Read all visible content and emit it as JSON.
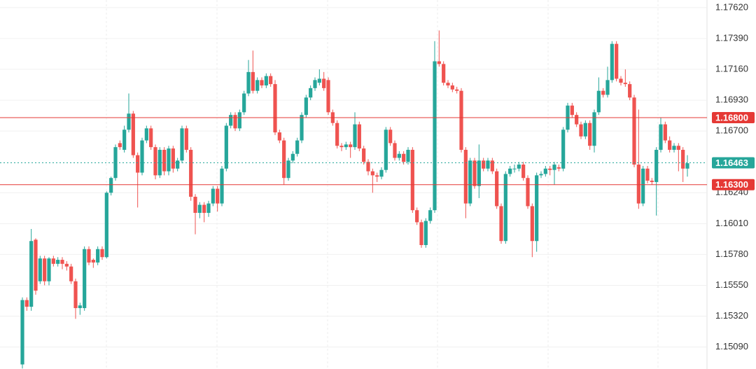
{
  "chart_data": {
    "type": "candlestick",
    "up_color": "#26a69a",
    "down_color": "#ef5350",
    "ylim": [
      1.14926,
      1.17677
    ],
    "yticks": [
      {
        "value": 1.1762,
        "label": "1.17620"
      },
      {
        "value": 1.1739,
        "label": "1.17390"
      },
      {
        "value": 1.1716,
        "label": "1.17160"
      },
      {
        "value": 1.1693,
        "label": "1.16930"
      },
      {
        "value": 1.167,
        "label": "1.16700"
      },
      {
        "value": 1.1624,
        "label": "1.16240"
      },
      {
        "value": 1.1601,
        "label": "1.16010"
      },
      {
        "value": 1.1578,
        "label": "1.15780"
      },
      {
        "value": 1.1555,
        "label": "1.15550"
      },
      {
        "value": 1.1532,
        "label": "1.15320"
      },
      {
        "value": 1.1509,
        "label": "1.15090"
      }
    ],
    "grid": true,
    "levels": [
      {
        "value": 1.168,
        "label": "1.16800",
        "color": "#e53935"
      },
      {
        "value": 1.163,
        "label": "1.16300",
        "color": "#e53935"
      }
    ],
    "last_price": {
      "value": 1.16463,
      "label": "1.16463",
      "color": "#26a69a"
    },
    "ohlc": [
      [
        1.1496,
        1.1546,
        1.1493,
        1.1544
      ],
      [
        1.1544,
        1.1546,
        1.1536,
        1.1539
      ],
      [
        1.1539,
        1.1597,
        1.1536,
        1.1588
      ],
      [
        1.1589,
        1.159,
        1.1548,
        1.1551
      ],
      [
        1.1558,
        1.1577,
        1.1556,
        1.1575
      ],
      [
        1.1575,
        1.1577,
        1.1555,
        1.1558
      ],
      [
        1.1558,
        1.1576,
        1.1555,
        1.1575
      ],
      [
        1.1575,
        1.1577,
        1.1569,
        1.1571
      ],
      [
        1.1571,
        1.1576,
        1.1569,
        1.1574
      ],
      [
        1.1574,
        1.1576,
        1.1567,
        1.1571
      ],
      [
        1.1571,
        1.1573,
        1.1566,
        1.1569
      ],
      [
        1.1569,
        1.1571,
        1.1556,
        1.1558
      ],
      [
        1.1558,
        1.156,
        1.153,
        1.1538
      ],
      [
        1.1538,
        1.1542,
        1.1533,
        1.154
      ],
      [
        1.1538,
        1.1584,
        1.1536,
        1.1582
      ],
      [
        1.1582,
        1.1584,
        1.157,
        1.1572
      ],
      [
        1.1574,
        1.1575,
        1.1568,
        1.1572
      ],
      [
        1.1572,
        1.1584,
        1.157,
        1.1582
      ],
      [
        1.1582,
        1.1584,
        1.1574,
        1.1576
      ],
      [
        1.1576,
        1.1625,
        1.1575,
        1.1624
      ],
      [
        1.1624,
        1.1636,
        1.1622,
        1.1635
      ],
      [
        1.1635,
        1.166,
        1.1633,
        1.1658
      ],
      [
        1.1661,
        1.1663,
        1.1656,
        1.1658
      ],
      [
        1.1656,
        1.1674,
        1.1654,
        1.1671
      ],
      [
        1.1671,
        1.1698,
        1.1669,
        1.1683
      ],
      [
        1.1683,
        1.1685,
        1.165,
        1.1652
      ],
      [
        1.1652,
        1.1654,
        1.1613,
        1.1639
      ],
      [
        1.1639,
        1.1665,
        1.1637,
        1.1663
      ],
      [
        1.1663,
        1.1674,
        1.1661,
        1.1672
      ],
      [
        1.1672,
        1.1674,
        1.1656,
        1.1658
      ],
      [
        1.1658,
        1.166,
        1.1634,
        1.1637
      ],
      [
        1.1637,
        1.1658,
        1.1635,
        1.1656
      ],
      [
        1.1656,
        1.1658,
        1.1637,
        1.164
      ],
      [
        1.164,
        1.1659,
        1.1637,
        1.1657
      ],
      [
        1.1657,
        1.1659,
        1.1639,
        1.1642
      ],
      [
        1.1642,
        1.165,
        1.164,
        1.1648
      ],
      [
        1.1648,
        1.1674,
        1.1646,
        1.1672
      ],
      [
        1.1672,
        1.1674,
        1.1654,
        1.1656
      ],
      [
        1.1656,
        1.1658,
        1.1618,
        1.1621
      ],
      [
        1.1621,
        1.1623,
        1.1593,
        1.1609
      ],
      [
        1.1609,
        1.1617,
        1.1605,
        1.1615
      ],
      [
        1.1615,
        1.1617,
        1.1602,
        1.1609
      ],
      [
        1.1609,
        1.1618,
        1.1606,
        1.1616
      ],
      [
        1.1616,
        1.1629,
        1.1614,
        1.1627
      ],
      [
        1.1627,
        1.1629,
        1.161,
        1.1616
      ],
      [
        1.1616,
        1.1644,
        1.1614,
        1.1642
      ],
      [
        1.1642,
        1.1676,
        1.164,
        1.1674
      ],
      [
        1.1674,
        1.1684,
        1.1672,
        1.1682
      ],
      [
        1.1682,
        1.1684,
        1.167,
        1.1672
      ],
      [
        1.1672,
        1.1686,
        1.167,
        1.1684
      ],
      [
        1.1684,
        1.17,
        1.1682,
        1.1698
      ],
      [
        1.1698,
        1.1723,
        1.1696,
        1.1714
      ],
      [
        1.1714,
        1.173,
        1.1698,
        1.17
      ],
      [
        1.17,
        1.171,
        1.1698,
        1.1708
      ],
      [
        1.1708,
        1.171,
        1.1702,
        1.1704
      ],
      [
        1.1704,
        1.1713,
        1.1702,
        1.1711
      ],
      [
        1.1711,
        1.1713,
        1.1703,
        1.1705
      ],
      [
        1.1705,
        1.1708,
        1.1667,
        1.1669
      ],
      [
        1.1669,
        1.1671,
        1.1661,
        1.1663
      ],
      [
        1.1663,
        1.1665,
        1.163,
        1.1635
      ],
      [
        1.1635,
        1.165,
        1.1633,
        1.1648
      ],
      [
        1.1648,
        1.1655,
        1.1646,
        1.1653
      ],
      [
        1.1653,
        1.1665,
        1.1651,
        1.1663
      ],
      [
        1.1663,
        1.1684,
        1.1661,
        1.1682
      ],
      [
        1.1682,
        1.1697,
        1.168,
        1.1695
      ],
      [
        1.1695,
        1.1704,
        1.1693,
        1.1702
      ],
      [
        1.1702,
        1.171,
        1.17,
        1.1708
      ],
      [
        1.1706,
        1.1716,
        1.1704,
        1.1709
      ],
      [
        1.1709,
        1.1714,
        1.17,
        1.1702
      ],
      [
        1.1708,
        1.171,
        1.1682,
        1.1684
      ],
      [
        1.1684,
        1.1686,
        1.1674,
        1.1676
      ],
      [
        1.1676,
        1.1678,
        1.1657,
        1.1659
      ],
      [
        1.1659,
        1.1661,
        1.1655,
        1.1658
      ],
      [
        1.1658,
        1.1662,
        1.1656,
        1.166
      ],
      [
        1.166,
        1.1662,
        1.165,
        1.1658
      ],
      [
        1.1658,
        1.1684,
        1.1656,
        1.1675
      ],
      [
        1.1675,
        1.1677,
        1.1655,
        1.1657
      ],
      [
        1.1657,
        1.1659,
        1.1645,
        1.1647
      ],
      [
        1.1647,
        1.1649,
        1.1637,
        1.164
      ],
      [
        1.164,
        1.1642,
        1.1624,
        1.1637
      ],
      [
        1.1637,
        1.1639,
        1.1632,
        1.1636
      ],
      [
        1.1636,
        1.1643,
        1.1634,
        1.1641
      ],
      [
        1.1641,
        1.1673,
        1.1639,
        1.1671
      ],
      [
        1.1671,
        1.1673,
        1.1659,
        1.1661
      ],
      [
        1.1661,
        1.1663,
        1.1648,
        1.165
      ],
      [
        1.165,
        1.1655,
        1.1648,
        1.1653
      ],
      [
        1.1653,
        1.1655,
        1.1645,
        1.1647
      ],
      [
        1.1647,
        1.1658,
        1.1645,
        1.1656
      ],
      [
        1.1656,
        1.1658,
        1.1609,
        1.1611
      ],
      [
        1.1611,
        1.1613,
        1.16,
        1.1602
      ],
      [
        1.1602,
        1.1604,
        1.1583,
        1.1585
      ],
      [
        1.1585,
        1.1605,
        1.1583,
        1.1603
      ],
      [
        1.1603,
        1.1613,
        1.1601,
        1.1611
      ],
      [
        1.1611,
        1.1737,
        1.1609,
        1.1722
      ],
      [
        1.1722,
        1.1745,
        1.1718,
        1.172
      ],
      [
        1.172,
        1.1722,
        1.1704,
        1.1706
      ],
      [
        1.1706,
        1.1708,
        1.1702,
        1.1704
      ],
      [
        1.1704,
        1.1706,
        1.1699,
        1.1701
      ],
      [
        1.1701,
        1.1703,
        1.1698,
        1.17
      ],
      [
        1.17,
        1.1702,
        1.1654,
        1.1656
      ],
      [
        1.1656,
        1.1658,
        1.1605,
        1.1616
      ],
      [
        1.1616,
        1.165,
        1.1614,
        1.1648
      ],
      [
        1.1648,
        1.165,
        1.1627,
        1.1629
      ],
      [
        1.1629,
        1.166,
        1.162,
        1.1648
      ],
      [
        1.1648,
        1.165,
        1.164,
        1.1642
      ],
      [
        1.1642,
        1.165,
        1.164,
        1.1648
      ],
      [
        1.1648,
        1.165,
        1.1638,
        1.164
      ],
      [
        1.164,
        1.1642,
        1.1612,
        1.1614
      ],
      [
        1.1614,
        1.1616,
        1.1586,
        1.1588
      ],
      [
        1.1588,
        1.164,
        1.1586,
        1.1638
      ],
      [
        1.1638,
        1.1644,
        1.1636,
        1.1642
      ],
      [
        1.1642,
        1.1645,
        1.1639,
        1.1642
      ],
      [
        1.1642,
        1.1647,
        1.164,
        1.1645
      ],
      [
        1.1645,
        1.1647,
        1.1633,
        1.1635
      ],
      [
        1.1635,
        1.1637,
        1.1612,
        1.1614
      ],
      [
        1.1614,
        1.1616,
        1.1576,
        1.1588
      ],
      [
        1.1588,
        1.1639,
        1.158,
        1.1637
      ],
      [
        1.1637,
        1.164,
        1.1635,
        1.1638
      ],
      [
        1.1638,
        1.1644,
        1.1636,
        1.1642
      ],
      [
        1.1642,
        1.1644,
        1.1637,
        1.1641
      ],
      [
        1.1641,
        1.1647,
        1.163,
        1.1645
      ],
      [
        1.1643,
        1.1645,
        1.164,
        1.1642
      ],
      [
        1.1642,
        1.1673,
        1.164,
        1.1671
      ],
      [
        1.1671,
        1.1691,
        1.1669,
        1.1689
      ],
      [
        1.1689,
        1.1691,
        1.168,
        1.1682
      ],
      [
        1.1682,
        1.1684,
        1.1673,
        1.1675
      ],
      [
        1.1675,
        1.1677,
        1.1664,
        1.1666
      ],
      [
        1.1666,
        1.1678,
        1.1664,
        1.1676
      ],
      [
        1.1676,
        1.1678,
        1.1656,
        1.1659
      ],
      [
        1.1659,
        1.1686,
        1.1654,
        1.1684
      ],
      [
        1.1684,
        1.171,
        1.1682,
        1.17
      ],
      [
        1.17,
        1.1702,
        1.1695,
        1.1697
      ],
      [
        1.1697,
        1.1718,
        1.1695,
        1.1708
      ],
      [
        1.1708,
        1.1737,
        1.1706,
        1.1735
      ],
      [
        1.1735,
        1.1737,
        1.1707,
        1.1709
      ],
      [
        1.1709,
        1.1711,
        1.1704,
        1.1706
      ],
      [
        1.1706,
        1.1716,
        1.1703,
        1.1705
      ],
      [
        1.1705,
        1.1707,
        1.1693,
        1.1695
      ],
      [
        1.1695,
        1.1697,
        1.1643,
        1.1645
      ],
      [
        1.1645,
        1.1686,
        1.1612,
        1.1616
      ],
      [
        1.1616,
        1.1644,
        1.1614,
        1.1642
      ],
      [
        1.1642,
        1.1644,
        1.1631,
        1.1633
      ],
      [
        1.1633,
        1.1635,
        1.163,
        1.1632
      ],
      [
        1.1632,
        1.1658,
        1.1607,
        1.1656
      ],
      [
        1.1656,
        1.168,
        1.1654,
        1.1675
      ],
      [
        1.1675,
        1.1677,
        1.1661,
        1.1663
      ],
      [
        1.1663,
        1.1666,
        1.1654,
        1.1656
      ],
      [
        1.1656,
        1.1661,
        1.1654,
        1.1659
      ],
      [
        1.1659,
        1.1661,
        1.164,
        1.1656
      ],
      [
        1.1656,
        1.1658,
        1.1632,
        1.1642
      ],
      [
        1.1642,
        1.1652,
        1.1636,
        1.1646
      ]
    ]
  }
}
